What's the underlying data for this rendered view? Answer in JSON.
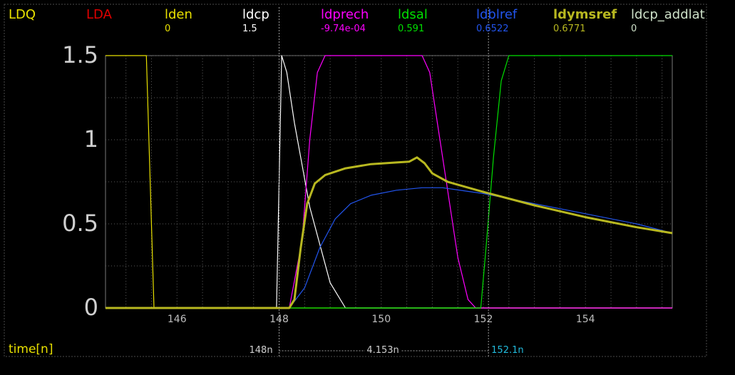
{
  "chart_data": {
    "type": "line",
    "title": "",
    "xlabel": "time[n]",
    "ylabel": "",
    "xlim": [
      144.6,
      155.7
    ],
    "ylim": [
      0,
      1.5
    ],
    "grid": true,
    "y_ticks": [
      "0",
      "0.5",
      "1",
      "1.5"
    ],
    "x_ticks": [
      "146",
      "148",
      "150",
      "152",
      "154"
    ],
    "series": [
      {
        "name": "LDQ",
        "color": "#e8e000",
        "value": "",
        "bold": false,
        "x": [],
        "y": []
      },
      {
        "name": "LDA",
        "color": "#e00000",
        "value": "",
        "bold": false,
        "x": [],
        "y": []
      },
      {
        "name": "lden",
        "color": "#e8e000",
        "value": "0",
        "bold": false,
        "x": [
          144.6,
          145.4,
          145.55,
          151.0,
          155.7
        ],
        "y": [
          1.5,
          1.5,
          0,
          0,
          0
        ]
      },
      {
        "name": "ldcp",
        "color": "#ffffff",
        "value": "1.5",
        "bold": false,
        "x": [
          144.6,
          147.95,
          148.05,
          148.15,
          148.3,
          148.6,
          149.0,
          149.3,
          155.7
        ],
        "y": [
          0,
          0,
          1.5,
          1.4,
          1.1,
          0.6,
          0.15,
          0,
          0
        ]
      },
      {
        "name": "ldprech",
        "color": "#ff00ff",
        "value": "-9.74e-04",
        "bold": false,
        "x": [
          144.6,
          148.2,
          148.45,
          148.6,
          148.75,
          148.9,
          150.8,
          150.95,
          151.1,
          151.3,
          151.5,
          151.7,
          151.85,
          155.7
        ],
        "y": [
          0,
          0,
          0.4,
          1.0,
          1.4,
          1.5,
          1.5,
          1.4,
          1.1,
          0.7,
          0.3,
          0.05,
          0,
          0
        ]
      },
      {
        "name": "ldsal",
        "color": "#00e000",
        "value": "0.591",
        "bold": false,
        "x": [
          144.6,
          151.95,
          152.05,
          152.2,
          152.35,
          152.5,
          155.7
        ],
        "y": [
          0,
          0,
          0.35,
          0.9,
          1.35,
          1.5,
          1.5
        ]
      },
      {
        "name": "ldblref",
        "color": "#2255ee",
        "value": "0.6522",
        "bold": false,
        "x": [
          144.6,
          148.2,
          148.5,
          148.8,
          149.1,
          149.4,
          149.8,
          150.3,
          150.8,
          151.2,
          152.0,
          153.0,
          154.0,
          155.0,
          155.7
        ],
        "y": [
          0,
          0,
          0.12,
          0.36,
          0.53,
          0.62,
          0.67,
          0.7,
          0.715,
          0.715,
          0.68,
          0.62,
          0.56,
          0.5,
          0.445
        ]
      },
      {
        "name": "ldymsref",
        "color": "#b8b820",
        "value": "0.6771",
        "bold": true,
        "x": [
          144.6,
          148.2,
          148.3,
          148.42,
          148.55,
          148.7,
          148.9,
          149.3,
          149.8,
          150.3,
          150.55,
          150.7,
          150.85,
          151.0,
          151.3,
          152.0,
          153.0,
          154.0,
          155.0,
          155.7
        ],
        "y": [
          0,
          0,
          0.05,
          0.35,
          0.62,
          0.74,
          0.79,
          0.83,
          0.855,
          0.865,
          0.87,
          0.895,
          0.86,
          0.8,
          0.75,
          0.69,
          0.61,
          0.54,
          0.48,
          0.445
        ]
      },
      {
        "name": "ldcp_addlat",
        "color": "#cde0c8",
        "value": "0",
        "bold": false,
        "x": [],
        "y": []
      }
    ],
    "cursors": {
      "a": {
        "x": 148.0,
        "label": "148n",
        "color": "#cfcfcf"
      },
      "b": {
        "x": 152.1,
        "label": "152.1n",
        "color": "#22bbdd"
      },
      "delta_label": "4.153n"
    }
  }
}
